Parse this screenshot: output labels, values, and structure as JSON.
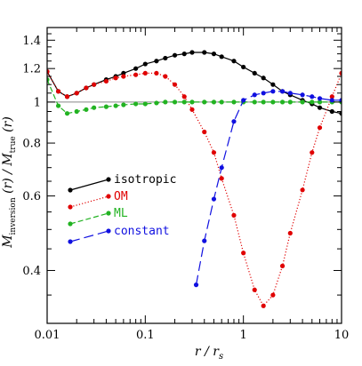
{
  "chart_data": {
    "type": "line",
    "xscale": "log",
    "yscale": "log",
    "xlim": [
      0.01,
      10
    ],
    "ylim": [
      0.3,
      1.5
    ],
    "xlabel": {
      "main": "r / r",
      "sub": "s"
    },
    "ylabel": {
      "parts": [
        "M",
        "inversion",
        " (r) / M",
        "true",
        " (r)"
      ]
    },
    "x_tick_labels": [
      "0.01",
      "0.1",
      "1",
      "10"
    ],
    "x_ticks": [
      0.01,
      0.1,
      1,
      10
    ],
    "y_tick_labels": [
      "0.4",
      "0.6",
      "0.8",
      "1",
      "1.2",
      "1.4"
    ],
    "y_ticks": [
      0.4,
      0.6,
      0.8,
      1.0,
      1.2,
      1.4
    ],
    "reference_line": {
      "y": 1.0,
      "color": "#888888"
    },
    "legend_placement": "left-middle",
    "series": [
      {
        "name": "isotropic",
        "color": "#000000",
        "dash": "",
        "x": [
          0.01,
          0.013,
          0.016,
          0.02,
          0.025,
          0.03,
          0.04,
          0.05,
          0.06,
          0.08,
          0.1,
          0.13,
          0.16,
          0.2,
          0.25,
          0.3,
          0.4,
          0.5,
          0.6,
          0.8,
          1.0,
          1.3,
          1.6,
          2.0,
          2.5,
          3.0,
          4.0,
          5.0,
          6.0,
          8.0,
          10.0
        ],
        "y": [
          1.18,
          1.06,
          1.03,
          1.05,
          1.08,
          1.1,
          1.13,
          1.15,
          1.17,
          1.2,
          1.23,
          1.25,
          1.27,
          1.29,
          1.3,
          1.31,
          1.31,
          1.3,
          1.28,
          1.25,
          1.21,
          1.17,
          1.14,
          1.1,
          1.06,
          1.04,
          1.01,
          0.99,
          0.97,
          0.95,
          0.94
        ]
      },
      {
        "name": "OM",
        "color": "#e00000",
        "dash": "1.2 2.2",
        "x": [
          0.01,
          0.013,
          0.016,
          0.02,
          0.025,
          0.03,
          0.04,
          0.05,
          0.06,
          0.08,
          0.1,
          0.13,
          0.16,
          0.2,
          0.25,
          0.3,
          0.4,
          0.5,
          0.6,
          0.8,
          1.0,
          1.3,
          1.6,
          2.0,
          2.5,
          3.0,
          4.0,
          5.0,
          6.0,
          8.0,
          10.0
        ],
        "y": [
          1.18,
          1.06,
          1.03,
          1.05,
          1.08,
          1.1,
          1.12,
          1.14,
          1.15,
          1.16,
          1.17,
          1.17,
          1.15,
          1.1,
          1.03,
          0.96,
          0.85,
          0.76,
          0.66,
          0.54,
          0.44,
          0.36,
          0.33,
          0.35,
          0.41,
          0.49,
          0.62,
          0.76,
          0.87,
          1.03,
          1.17
        ]
      },
      {
        "name": "ML",
        "color": "#22b322",
        "dash": "6 3",
        "x": [
          0.01,
          0.013,
          0.016,
          0.02,
          0.025,
          0.03,
          0.04,
          0.05,
          0.06,
          0.08,
          0.1,
          0.13,
          0.16,
          0.2,
          0.25,
          0.3,
          0.4,
          0.5,
          0.6,
          0.8,
          1.0,
          1.3,
          1.6,
          2.0,
          2.5,
          3.0,
          4.0,
          5.0,
          6.0,
          8.0,
          10.0
        ],
        "y": [
          1.13,
          0.98,
          0.94,
          0.95,
          0.96,
          0.97,
          0.975,
          0.98,
          0.985,
          0.99,
          0.99,
          0.995,
          1.0,
          1.0,
          1.0,
          1.0,
          1.0,
          1.0,
          1.0,
          1.0,
          1.0,
          1.0,
          1.0,
          1.0,
          1.0,
          1.0,
          1.0,
          1.0,
          1.0,
          1.0,
          1.0
        ]
      },
      {
        "name": "constant",
        "color": "#1010e0",
        "dash": "11 5",
        "x": [
          0.33,
          0.4,
          0.5,
          0.6,
          0.8,
          1.0,
          1.3,
          1.6,
          2.0,
          2.5,
          3.0,
          4.0,
          5.0,
          6.0,
          8.0,
          10.0
        ],
        "y": [
          0.37,
          0.47,
          0.59,
          0.7,
          0.9,
          1.01,
          1.04,
          1.05,
          1.06,
          1.06,
          1.05,
          1.04,
          1.03,
          1.02,
          1.01,
          1.01
        ]
      }
    ]
  }
}
